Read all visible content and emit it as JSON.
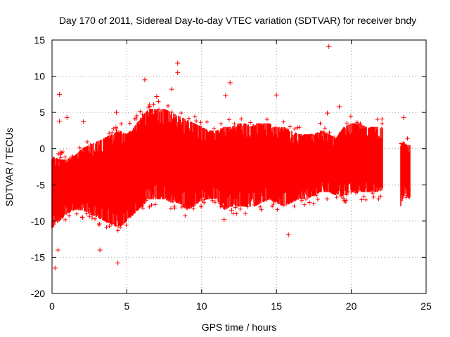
{
  "chart_data": {
    "type": "scatter",
    "title": "Day 170 of 2011, Sidereal Day-to-day VTEC variation (SDTVAR) for receiver bndy",
    "xlabel": "GPS time / hours",
    "ylabel": "SDTVAR / TECUs",
    "xlim": [
      0,
      25
    ],
    "ylim": [
      -20,
      15
    ],
    "xticks": [
      0,
      5,
      10,
      15,
      20,
      25
    ],
    "yticks": [
      -20,
      -15,
      -10,
      -5,
      0,
      5,
      10,
      15
    ],
    "grid": true,
    "marker": "+",
    "colors": {
      "series": "#ff0000",
      "grid": "#a0a0a0",
      "axis": "#000000"
    },
    "series": [
      {
        "name": "SDTVAR",
        "envelope": {
          "x": [
            0.0,
            0.5,
            1.0,
            1.5,
            2.0,
            2.5,
            3.0,
            3.5,
            4.0,
            4.5,
            5.0,
            5.5,
            6.0,
            6.5,
            7.0,
            7.5,
            8.0,
            8.5,
            9.0,
            9.5,
            10.0,
            10.5,
            11.0,
            11.5,
            12.0,
            12.5,
            13.0,
            13.5,
            14.0,
            14.5,
            15.0,
            15.5,
            16.0,
            16.5,
            17.0,
            17.5,
            18.0,
            18.5,
            19.0,
            19.5,
            20.0,
            20.5,
            21.0,
            21.5,
            22.1
          ],
          "upper": [
            -1.0,
            -1.5,
            -1.5,
            -1.0,
            0.0,
            0.5,
            1.0,
            1.5,
            2.0,
            2.5,
            2.0,
            3.0,
            4.5,
            5.5,
            5.5,
            5.5,
            5.0,
            4.5,
            4.0,
            3.5,
            3.0,
            2.5,
            2.5,
            3.0,
            3.0,
            3.5,
            3.5,
            3.5,
            3.5,
            3.5,
            3.0,
            3.0,
            2.5,
            2.0,
            2.0,
            2.0,
            2.5,
            2.0,
            1.5,
            3.0,
            3.5,
            3.5,
            3.0,
            3.0,
            3.0
          ],
          "lower": [
            -11.0,
            -10.0,
            -9.0,
            -8.5,
            -8.5,
            -9.0,
            -9.5,
            -10.0,
            -10.5,
            -11.0,
            -10.0,
            -9.0,
            -8.0,
            -7.0,
            -7.0,
            -7.0,
            -7.5,
            -7.5,
            -8.5,
            -8.0,
            -7.0,
            -7.0,
            -7.0,
            -8.5,
            -8.0,
            -8.0,
            -8.0,
            -8.0,
            -7.5,
            -7.0,
            -7.5,
            -8.0,
            -7.5,
            -7.0,
            -7.0,
            -6.5,
            -6.0,
            -6.0,
            -6.5,
            -6.5,
            -6.0,
            -6.0,
            -6.0,
            -6.0,
            -6.0
          ]
        },
        "envelope_2": {
          "x": [
            23.3,
            23.5,
            23.7,
            23.9
          ],
          "upper": [
            0.5,
            1.0,
            0.5,
            0.5
          ],
          "lower": [
            -8.0,
            -6.5,
            -6.5,
            -7.0
          ]
        },
        "outliers": [
          {
            "x": 0.2,
            "y": -16.5
          },
          {
            "x": 0.4,
            "y": -14.0
          },
          {
            "x": 0.5,
            "y": 7.5
          },
          {
            "x": 1.0,
            "y": 4.3
          },
          {
            "x": 0.5,
            "y": 3.8
          },
          {
            "x": 2.1,
            "y": 3.7
          },
          {
            "x": 3.2,
            "y": -14.0
          },
          {
            "x": 4.4,
            "y": -15.8
          },
          {
            "x": 4.3,
            "y": 5.0
          },
          {
            "x": 6.2,
            "y": 9.5
          },
          {
            "x": 7.0,
            "y": 7.2
          },
          {
            "x": 8.0,
            "y": 8.2
          },
          {
            "x": 8.4,
            "y": 11.8
          },
          {
            "x": 8.4,
            "y": 10.5
          },
          {
            "x": 11.5,
            "y": -9.8
          },
          {
            "x": 11.9,
            "y": 9.1
          },
          {
            "x": 12.0,
            "y": -8.5
          },
          {
            "x": 11.6,
            "y": 7.3
          },
          {
            "x": 15.0,
            "y": 7.4
          },
          {
            "x": 15.8,
            "y": -11.9
          },
          {
            "x": 18.5,
            "y": 14.1
          },
          {
            "x": 19.2,
            "y": 5.8
          },
          {
            "x": 18.4,
            "y": 4.9
          },
          {
            "x": 23.5,
            "y": 4.3
          }
        ]
      }
    ]
  }
}
